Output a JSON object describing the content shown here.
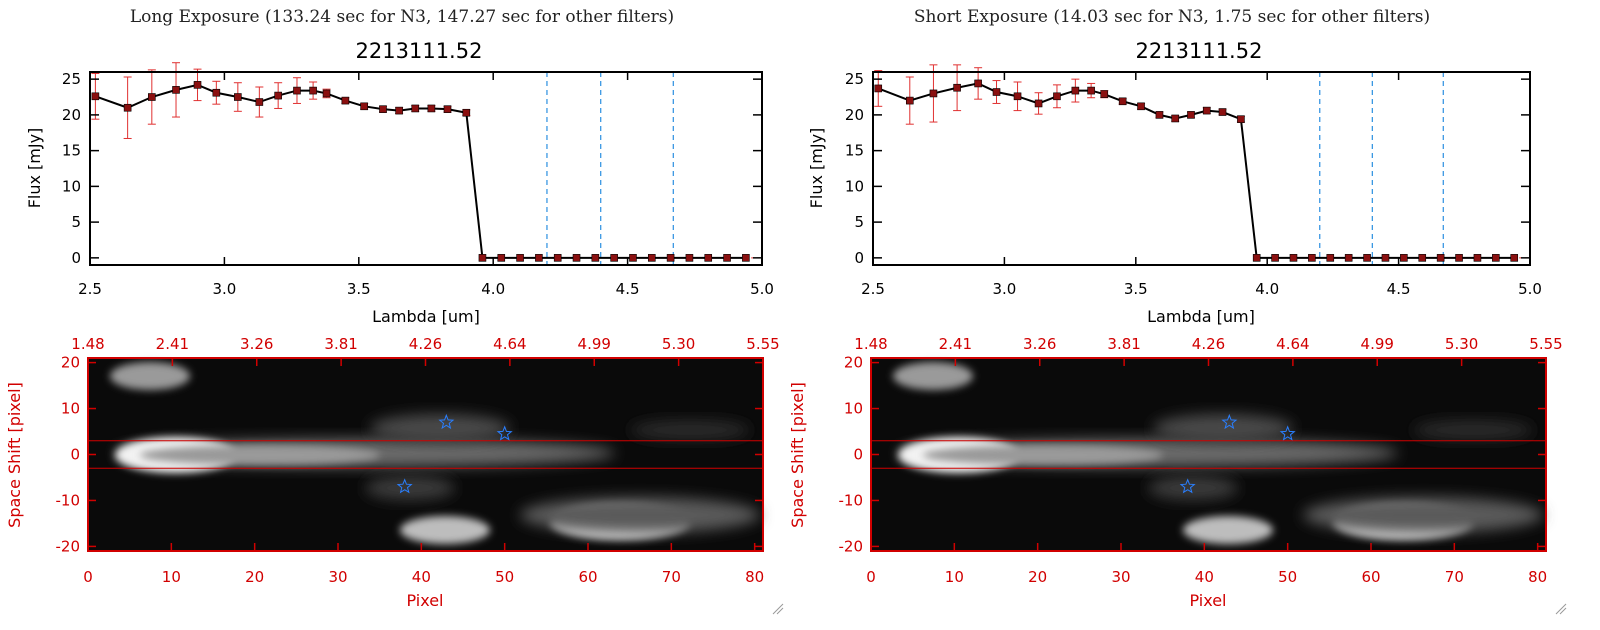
{
  "figure_titles": [
    "Long Exposure (133.24 sec for N3, 147.27 sec for other filters)",
    "Short Exposure (14.03 sec for N3, 1.75 sec for other filters)"
  ],
  "colors": {
    "line": "#000000",
    "marker": "#8b1010",
    "errorbar": "#e03030",
    "vline": "#2a8fe0",
    "image_frame": "#d10000",
    "star": "#2a7fff"
  },
  "chart_data": [
    {
      "type": "line",
      "title": "2213111.52",
      "xlabel": "Lambda [um]",
      "ylabel": "Flux [mJy]",
      "xlim": [
        2.5,
        5.0
      ],
      "ylim": [
        -1,
        26
      ],
      "xticks": [
        2.5,
        3.0,
        3.5,
        4.0,
        4.5,
        5.0
      ],
      "xtick_labels": [
        "2.5",
        "3.0",
        "3.5",
        "4.0",
        "4.5",
        "5.0"
      ],
      "yticks": [
        0,
        5,
        10,
        15,
        20,
        25
      ],
      "ytick_labels": [
        "0",
        "5",
        "10",
        "15",
        "20",
        "25"
      ],
      "vlines": [
        4.2,
        4.4,
        4.67
      ],
      "series": [
        {
          "name": "flux",
          "x": [
            2.52,
            2.64,
            2.73,
            2.82,
            2.9,
            2.97,
            3.05,
            3.13,
            3.2,
            3.27,
            3.33,
            3.38,
            3.45,
            3.52,
            3.59,
            3.65,
            3.71,
            3.77,
            3.83,
            3.9,
            3.96,
            4.03,
            4.1,
            4.17,
            4.24,
            4.31,
            4.38,
            4.45,
            4.52,
            4.59,
            4.66,
            4.73,
            4.8,
            4.87,
            4.94
          ],
          "y": [
            22.6,
            21.0,
            22.5,
            23.5,
            24.2,
            23.1,
            22.5,
            21.8,
            22.7,
            23.4,
            23.4,
            23.0,
            22.0,
            21.2,
            20.8,
            20.6,
            20.9,
            20.9,
            20.8,
            20.3,
            0,
            0,
            0,
            0,
            0,
            0,
            0,
            0,
            0,
            0,
            0,
            0,
            0,
            0,
            0
          ],
          "yerr": [
            3.2,
            4.3,
            3.8,
            3.8,
            2.2,
            1.6,
            2.0,
            2.1,
            1.8,
            1.8,
            1.2,
            0.6,
            0.4,
            0.4,
            0.4,
            0.4,
            0.4,
            0.4,
            0.4,
            0.4,
            0,
            0,
            0,
            0,
            0,
            0,
            0,
            0,
            0,
            0,
            0,
            0,
            0,
            0,
            0
          ]
        }
      ]
    },
    {
      "type": "heatmap",
      "xlabel": "Pixel",
      "ylabel": "Space Shift [pixel]",
      "xlim": [
        0,
        81
      ],
      "ylim": [
        -21,
        21
      ],
      "xticks": [
        0,
        10,
        20,
        30,
        40,
        50,
        60,
        70,
        80
      ],
      "xtick_labels": [
        "0",
        "10",
        "20",
        "30",
        "40",
        "50",
        "60",
        "70",
        "80"
      ],
      "yticks": [
        20,
        10,
        0,
        -10,
        -20
      ],
      "ytick_labels": [
        "20",
        "10",
        "0",
        "-10",
        "-20"
      ],
      "top_tick_labels": [
        "1.48",
        "2.41",
        "3.26",
        "3.81",
        "4.26",
        "4.64",
        "4.99",
        "5.30",
        "5.55"
      ],
      "aperture_lines": [
        3,
        -3
      ],
      "stars": [
        [
          43,
          7
        ],
        [
          50,
          4.5
        ],
        [
          38,
          -7
        ]
      ]
    },
    {
      "type": "line",
      "title": "2213111.52",
      "xlabel": "Lambda [um]",
      "ylabel": "Flux [mJy]",
      "xlim": [
        2.5,
        5.0
      ],
      "ylim": [
        -1,
        26
      ],
      "xticks": [
        2.5,
        3.0,
        3.5,
        4.0,
        4.5,
        5.0
      ],
      "xtick_labels": [
        "2.5",
        "3.0",
        "3.5",
        "4.0",
        "4.5",
        "5.0"
      ],
      "yticks": [
        0,
        5,
        10,
        15,
        20,
        25
      ],
      "ytick_labels": [
        "0",
        "5",
        "10",
        "15",
        "20",
        "25"
      ],
      "vlines": [
        4.2,
        4.4,
        4.67
      ],
      "series": [
        {
          "name": "flux",
          "x": [
            2.52,
            2.64,
            2.73,
            2.82,
            2.9,
            2.97,
            3.05,
            3.13,
            3.2,
            3.27,
            3.33,
            3.38,
            3.45,
            3.52,
            3.59,
            3.65,
            3.71,
            3.77,
            3.83,
            3.9,
            3.96,
            4.03,
            4.1,
            4.17,
            4.24,
            4.31,
            4.38,
            4.45,
            4.52,
            4.59,
            4.66,
            4.73,
            4.8,
            4.87,
            4.94
          ],
          "y": [
            23.7,
            22.0,
            23.0,
            23.8,
            24.4,
            23.2,
            22.6,
            21.6,
            22.6,
            23.4,
            23.4,
            22.9,
            21.9,
            21.2,
            20.0,
            19.5,
            20.0,
            20.6,
            20.4,
            19.4,
            0,
            0,
            0,
            0,
            0,
            0,
            0,
            0,
            0,
            0,
            0,
            0,
            0,
            0,
            0
          ],
          "yerr": [
            2.5,
            3.3,
            4.0,
            3.2,
            2.2,
            1.6,
            2.0,
            1.5,
            1.6,
            1.6,
            1.0,
            0.5,
            0.4,
            0.4,
            0.4,
            0.4,
            0.4,
            0.4,
            0.4,
            0.4,
            0,
            0,
            0,
            0,
            0,
            0,
            0,
            0,
            0,
            0,
            0,
            0,
            0,
            0,
            0
          ]
        }
      ]
    },
    {
      "type": "heatmap",
      "xlabel": "Pixel",
      "ylabel": "Space Shift [pixel]",
      "xlim": [
        0,
        81
      ],
      "ylim": [
        -21,
        21
      ],
      "xticks": [
        0,
        10,
        20,
        30,
        40,
        50,
        60,
        70,
        80
      ],
      "xtick_labels": [
        "0",
        "10",
        "20",
        "30",
        "40",
        "50",
        "60",
        "70",
        "80"
      ],
      "yticks": [
        20,
        10,
        0,
        -10,
        -20
      ],
      "ytick_labels": [
        "20",
        "10",
        "0",
        "-10",
        "-20"
      ],
      "top_tick_labels": [
        "1.48",
        "2.41",
        "3.26",
        "3.81",
        "4.26",
        "4.64",
        "4.99",
        "5.30",
        "5.55"
      ],
      "aperture_lines": [
        3,
        -3
      ],
      "stars": [
        [
          43,
          7
        ],
        [
          50,
          4.5
        ],
        [
          38,
          -7
        ]
      ]
    }
  ]
}
